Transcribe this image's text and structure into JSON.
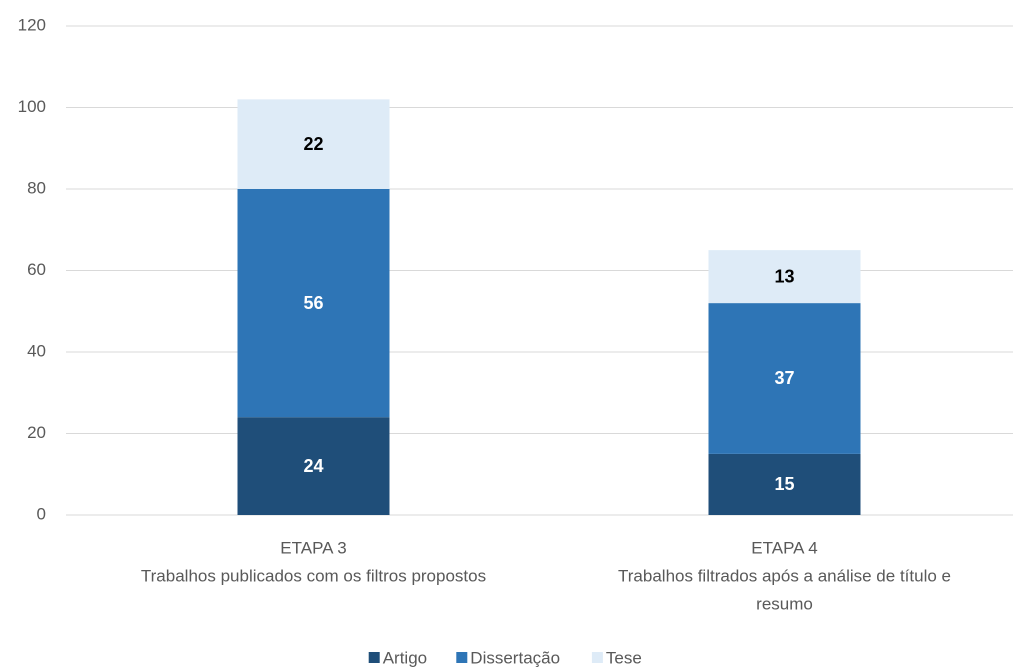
{
  "chart_data": {
    "type": "stacked_bar",
    "categories": [
      [
        "ETAPA 3",
        "Trabalhos publicados com os filtros propostos"
      ],
      [
        "ETAPA 4",
        "Trabalhos filtrados após a análise de título e",
        "resumo"
      ]
    ],
    "series": [
      {
        "name": "Artigo",
        "color": "#1f4e79",
        "label_color": "#ffffff",
        "values": [
          24,
          15
        ]
      },
      {
        "name": "Dissertação",
        "color": "#2e75b6",
        "label_color": "#ffffff",
        "values": [
          56,
          37
        ]
      },
      {
        "name": "Tese",
        "color": "#deebf7",
        "label_color": "#000000",
        "values": [
          22,
          13
        ]
      }
    ],
    "ylim": [
      0,
      120
    ],
    "yticks": [
      0,
      20,
      40,
      60,
      80,
      100,
      120
    ],
    "grid": true,
    "legend": "bottom"
  }
}
